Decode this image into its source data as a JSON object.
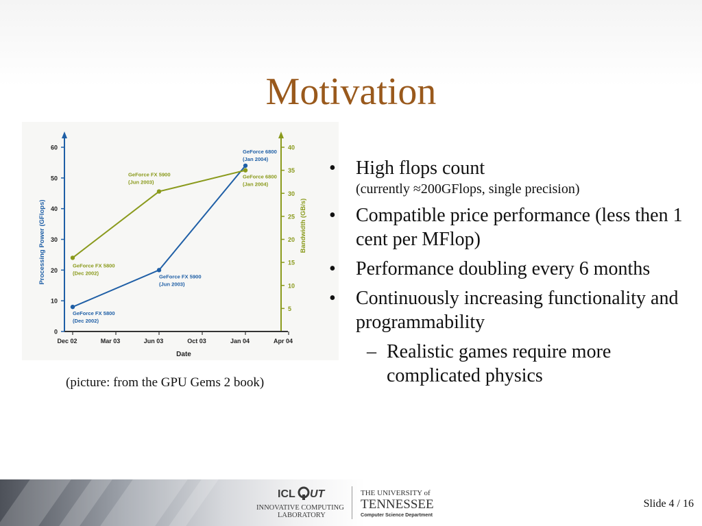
{
  "slide": {
    "title": "Motivation",
    "caption": "(picture: from the GPU Gems 2 book)",
    "slide_number": "Slide 4 / 16"
  },
  "bullets": [
    {
      "text": "High flops count",
      "note": "(currently ≈200GFlops, single precision)"
    },
    {
      "text": "Compatible price performance (less then 1 cent per MFlop)"
    },
    {
      "text": "Performance doubling every 6 months"
    },
    {
      "text": "Continuously increasing functionality and programmability"
    }
  ],
  "sub_bullets": [
    {
      "text": "Realistic games require more complicated physics"
    }
  ],
  "bullet_marks": {
    "main": "•",
    "sub": "–"
  },
  "logos": {
    "icl": {
      "line1": "ICL",
      "mark": "UT",
      "line2": "INNOVATIVE COMPUTING",
      "line3": "LABORATORY"
    },
    "ut": {
      "line1": "THE UNIVERSITY of",
      "line2": "TENNESSEE",
      "line3": "Computer Science Department"
    }
  },
  "colors": {
    "title": "#99591c",
    "flops": "#1f5fa6",
    "bandwidth": "#8a9a1c"
  },
  "chart_data": {
    "type": "line",
    "xlabel": "Date",
    "x_ticks": [
      "Dec 02",
      "Mar 03",
      "Jun 03",
      "Oct 03",
      "Jan 04",
      "Apr 04"
    ],
    "y_left": {
      "label": "Processing Power (GFlops)",
      "ticks": [
        0,
        10,
        20,
        30,
        40,
        50,
        60
      ],
      "range": [
        0,
        60
      ]
    },
    "y_right": {
      "label": "Bandwidth (GB/s)",
      "ticks": [
        5,
        10,
        15,
        20,
        25,
        30,
        35,
        40
      ],
      "range": [
        0,
        40
      ]
    },
    "series": [
      {
        "axis": "left",
        "color": "#1f5fa6",
        "points": [
          {
            "x": "Dec 02",
            "y": 8,
            "label1": "GeForce FX 5800",
            "label2": "(Dec 2002)"
          },
          {
            "x": "Jun 03",
            "y": 20,
            "label1": "GeForce FX 5900",
            "label2": "(Jun 2003)"
          },
          {
            "x": "Jan 04",
            "y": 54,
            "label1": "GeForce 6800",
            "label2": "(Jan 2004)"
          }
        ]
      },
      {
        "axis": "right",
        "color": "#8a9a1c",
        "points": [
          {
            "x": "Dec 02",
            "y": 16,
            "label1": "GeForce FX 5800",
            "label2": "(Dec 2002)"
          },
          {
            "x": "Jun 03",
            "y": 30.4,
            "label1": "GeForce FX 5900",
            "label2": "(Jun 2003)"
          },
          {
            "x": "Jan 04",
            "y": 35,
            "label1": "GeForce 6800",
            "label2": "(Jan 2004)"
          }
        ]
      }
    ],
    "grid": false,
    "legend": "none"
  }
}
